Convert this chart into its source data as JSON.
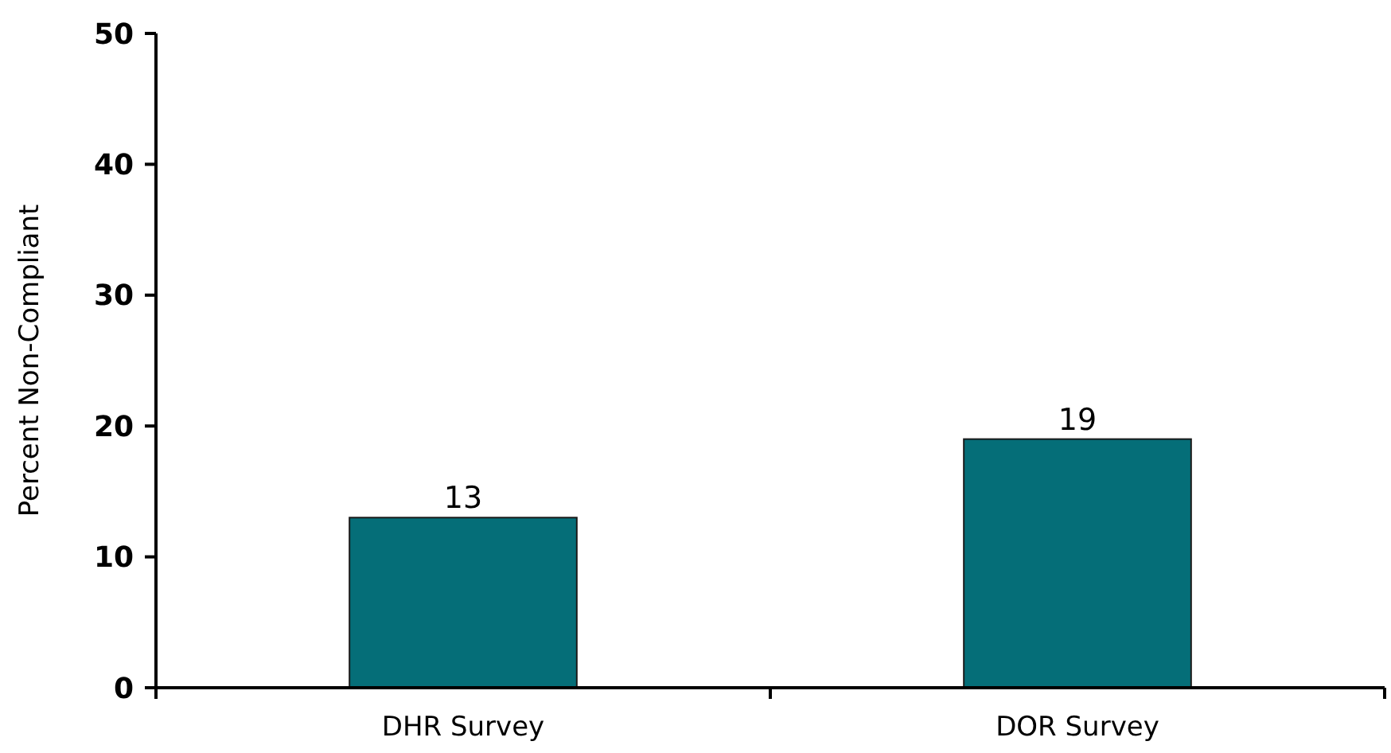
{
  "chart_data": {
    "type": "bar",
    "ylabel": "Percent Non-Compliant",
    "categories": [
      "DHR Survey",
      "DOR Survey"
    ],
    "values": [
      13,
      19
    ],
    "color": "#056e78",
    "ylim": [
      0,
      50
    ],
    "yticks": [
      0,
      10,
      20,
      30,
      40,
      50
    ],
    "data_labels": true
  }
}
